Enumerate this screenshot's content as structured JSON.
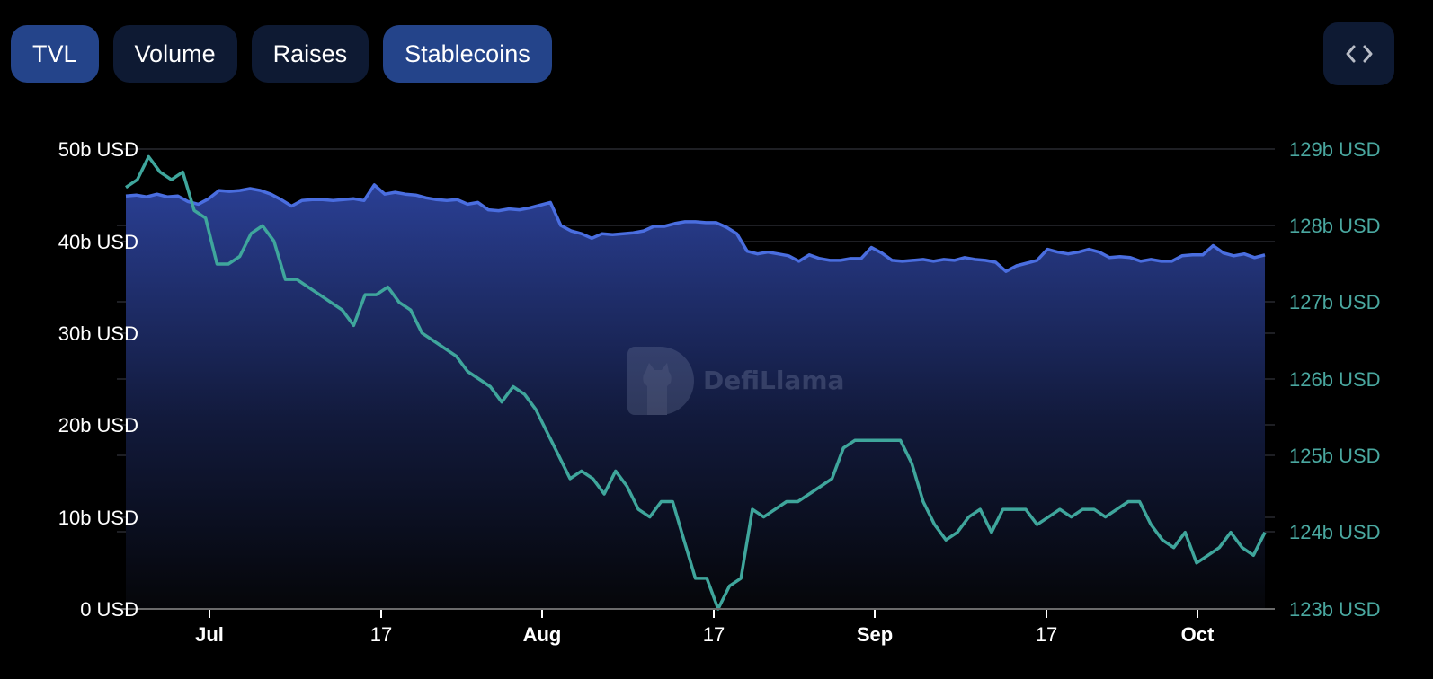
{
  "tabs": [
    {
      "label": "TVL",
      "active": true
    },
    {
      "label": "Volume",
      "active": false
    },
    {
      "label": "Raises",
      "active": false
    },
    {
      "label": "Stablecoins",
      "active": true
    }
  ],
  "embed_button": {
    "icon": "code-icon",
    "glyph": "< >"
  },
  "watermark": {
    "text": "DefiLlama"
  },
  "colors": {
    "tvl_line": "#4a6ee0",
    "stablecoins_line": "#3fa69c",
    "tab_active": "#24448a",
    "tab_inactive": "#0e1a33",
    "right_axis_text": "#4aa8a0"
  },
  "left_axis": {
    "ticks": [
      "50b USD",
      "40b USD",
      "30b USD",
      "20b USD",
      "10b USD",
      "0 USD"
    ]
  },
  "right_axis": {
    "ticks": [
      "129b USD",
      "128b USD",
      "127b USD",
      "126b USD",
      "125b USD",
      "124b USD",
      "123b USD"
    ]
  },
  "x_axis": {
    "ticks": [
      "Jul",
      "17",
      "Aug",
      "17",
      "Sep",
      "17",
      "Oct"
    ]
  },
  "chart_data": {
    "type": "line",
    "title": "",
    "xlabel": "",
    "ylabel": "",
    "legend": [],
    "grid": true,
    "x_range": [
      "late Jun",
      "early Oct"
    ],
    "x_ticks": [
      "Jul",
      "17",
      "Aug",
      "17",
      "Sep",
      "17",
      "Oct"
    ],
    "y_left": {
      "label": "TVL",
      "ticks": [
        "0 USD",
        "10b USD",
        "20b USD",
        "30b USD",
        "40b USD",
        "50b USD"
      ],
      "ylim": [
        0,
        50
      ]
    },
    "y_right": {
      "label": "Stablecoins",
      "ticks": [
        "123b USD",
        "124b USD",
        "125b USD",
        "126b USD",
        "127b USD",
        "128b USD",
        "129b USD"
      ],
      "ylim": [
        123,
        129
      ]
    },
    "series": [
      {
        "name": "TVL",
        "axis": "left",
        "style": "area",
        "unit": "b USD",
        "values": [
          44.9,
          45.0,
          44.8,
          45.1,
          44.8,
          44.9,
          44.3,
          44.0,
          44.6,
          45.5,
          45.4,
          45.5,
          45.7,
          45.5,
          45.1,
          44.5,
          43.8,
          44.4,
          44.5,
          44.5,
          44.4,
          44.5,
          44.6,
          44.4,
          46.1,
          45.1,
          45.3,
          45.1,
          45.0,
          44.7,
          44.5,
          44.4,
          44.5,
          44.0,
          44.2,
          43.4,
          43.3,
          43.5,
          43.4,
          43.6,
          43.9,
          44.2,
          41.7,
          41.1,
          40.8,
          40.3,
          40.8,
          40.7,
          40.8,
          40.9,
          41.1,
          41.6,
          41.6,
          41.9,
          42.1,
          42.1,
          42.0,
          42.0,
          41.5,
          40.8,
          38.9,
          38.6,
          38.8,
          38.6,
          38.4,
          37.8,
          38.5,
          38.1,
          37.9,
          37.9,
          38.1,
          38.1,
          39.3,
          38.7,
          37.9,
          37.8,
          37.9,
          38.0,
          37.8,
          38.0,
          37.9,
          38.2,
          38.0,
          37.9,
          37.7,
          36.7,
          37.3,
          37.6,
          37.9,
          39.1,
          38.8,
          38.6,
          38.8,
          39.1,
          38.8,
          38.2,
          38.3,
          38.2,
          37.8,
          38.0,
          37.8,
          37.8,
          38.4,
          38.5,
          38.5,
          39.5,
          38.7,
          38.4,
          38.6,
          38.2,
          38.5
        ]
      },
      {
        "name": "Stablecoins",
        "axis": "right",
        "style": "line",
        "unit": "b USD",
        "values": [
          128.5,
          128.6,
          128.9,
          128.7,
          128.6,
          128.7,
          128.2,
          128.1,
          127.5,
          127.5,
          127.6,
          127.9,
          128.0,
          127.8,
          127.3,
          127.3,
          127.2,
          127.1,
          127.0,
          126.9,
          126.7,
          127.1,
          127.1,
          127.2,
          127.0,
          126.9,
          126.6,
          126.5,
          126.4,
          126.3,
          126.1,
          126.0,
          125.9,
          125.7,
          125.9,
          125.8,
          125.6,
          125.3,
          125.0,
          124.7,
          124.8,
          124.7,
          124.5,
          124.8,
          124.6,
          124.3,
          124.2,
          124.4,
          124.4,
          123.9,
          123.4,
          123.4,
          123.0,
          123.3,
          123.4,
          124.3,
          124.2,
          124.3,
          124.4,
          124.4,
          124.5,
          124.6,
          124.7,
          125.1,
          125.2,
          125.2,
          125.2,
          125.2,
          125.2,
          124.9,
          124.4,
          124.1,
          123.9,
          124.0,
          124.2,
          124.3,
          124.0,
          124.3,
          124.3,
          124.3,
          124.1,
          124.2,
          124.3,
          124.2,
          124.3,
          124.3,
          124.2,
          124.3,
          124.4,
          124.4,
          124.1,
          123.9,
          123.8,
          124.0,
          123.6,
          123.7,
          123.8,
          124.0,
          123.8,
          123.7,
          124.0
        ]
      }
    ]
  }
}
